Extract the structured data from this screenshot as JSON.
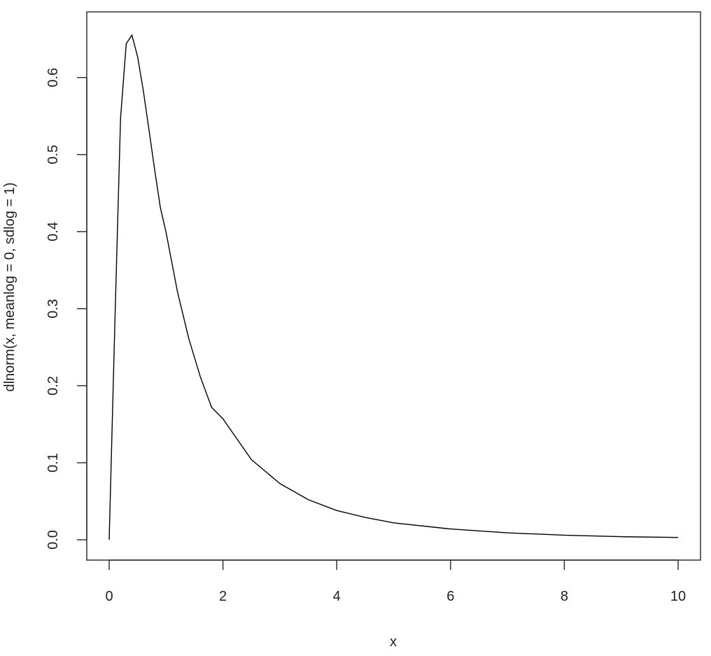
{
  "chart_data": {
    "type": "line",
    "title": "",
    "xlabel": "x",
    "ylabel": "dlnorm(x, meanlog = 0, sdlog = 1)",
    "xlim": [
      0,
      10
    ],
    "ylim": [
      0,
      0.657
    ],
    "x_ticks": [
      0,
      2,
      4,
      6,
      8,
      10
    ],
    "y_ticks": [
      0.0,
      0.1,
      0.2,
      0.3,
      0.4,
      0.5,
      0.6
    ],
    "x_tick_labels": [
      "0",
      "2",
      "4",
      "6",
      "8",
      "10"
    ],
    "y_tick_labels": [
      "0.0",
      "0.1",
      "0.2",
      "0.3",
      "0.4",
      "0.5",
      "0.6"
    ],
    "grid": false,
    "legend": "none",
    "line_color": "#000000",
    "series": [
      {
        "x": [
          0,
          0.1,
          0.2,
          0.3,
          0.4,
          0.5,
          0.6,
          0.7,
          0.8,
          0.9,
          1.0,
          1.2,
          1.4,
          1.6,
          1.8,
          2.0,
          2.5,
          3.0,
          3.5,
          4.0,
          4.5,
          5.0,
          6.0,
          7.0,
          8.0,
          9.0,
          10.0
        ],
        "y": [
          0,
          0.281,
          0.547,
          0.644,
          0.655,
          0.627,
          0.583,
          0.532,
          0.48,
          0.431,
          0.399,
          0.322,
          0.261,
          0.212,
          0.172,
          0.157,
          0.104,
          0.073,
          0.052,
          0.038,
          0.029,
          0.022,
          0.014,
          0.009,
          0.006,
          0.004,
          0.003
        ]
      }
    ]
  }
}
